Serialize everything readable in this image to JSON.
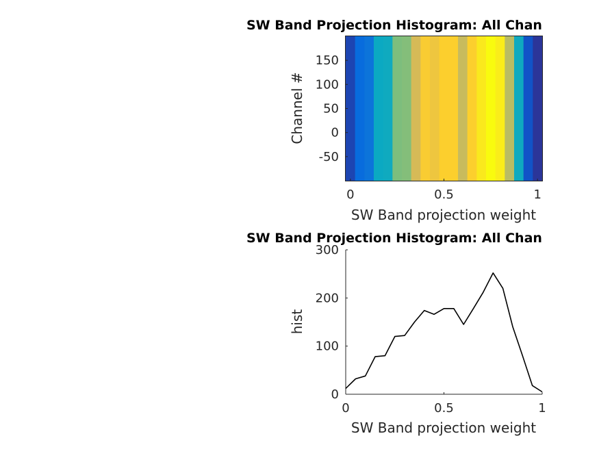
{
  "chart_data": [
    {
      "type": "heatmap",
      "title": "SW Band Projection Histogram: All Chan",
      "xlabel": "SW Band projection weight",
      "ylabel": "Channel #",
      "xlim": [
        -0.025,
        1.025
      ],
      "ylim": [
        -100,
        200
      ],
      "xticks": [
        "0",
        "0.5",
        "1"
      ],
      "xtick_values": [
        0,
        0.5,
        1
      ],
      "yticks": [
        "150",
        "100",
        "50",
        "0",
        "-50"
      ],
      "ytick_values": [
        150,
        100,
        50,
        0,
        -50
      ],
      "colormap": "parula",
      "bin_centers": [
        0,
        0.05,
        0.1,
        0.15,
        0.2,
        0.25,
        0.3,
        0.35,
        0.4,
        0.45,
        0.5,
        0.55,
        0.6,
        0.65,
        0.7,
        0.75,
        0.8,
        0.85,
        0.9,
        0.95,
        1.0
      ],
      "values": [
        12,
        32,
        38,
        78,
        80,
        120,
        122,
        150,
        174,
        166,
        178,
        178,
        145,
        178,
        212,
        252,
        220,
        140,
        80,
        18,
        5
      ],
      "color_range": [
        0,
        252
      ]
    },
    {
      "type": "line",
      "title": "SW Band Projection Histogram: All Chan",
      "xlabel": "SW Band projection weight",
      "ylabel": "hist",
      "xlim": [
        0,
        1
      ],
      "ylim": [
        0,
        300
      ],
      "xticks": [
        "0",
        "0.5",
        "1"
      ],
      "xtick_values": [
        0,
        0.5,
        1
      ],
      "yticks": [
        "300",
        "200",
        "100",
        "0"
      ],
      "ytick_values": [
        300,
        200,
        100,
        0
      ],
      "x": [
        0,
        0.05,
        0.1,
        0.15,
        0.2,
        0.25,
        0.3,
        0.35,
        0.4,
        0.45,
        0.5,
        0.55,
        0.6,
        0.65,
        0.7,
        0.75,
        0.8,
        0.85,
        0.9,
        0.95,
        1.0
      ],
      "y": [
        12,
        32,
        38,
        78,
        80,
        120,
        122,
        150,
        174,
        166,
        178,
        178,
        145,
        178,
        212,
        252,
        220,
        140,
        80,
        18,
        5
      ],
      "line_color": "#000000"
    }
  ]
}
